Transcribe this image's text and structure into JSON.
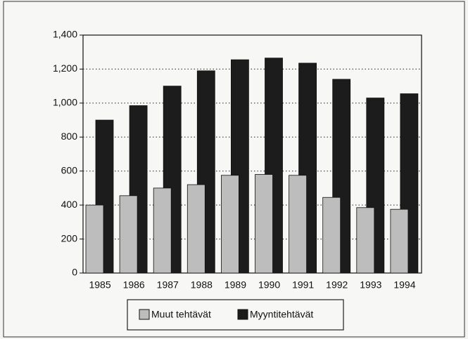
{
  "chart_data": {
    "type": "bar",
    "categories": [
      "1985",
      "1986",
      "1987",
      "1988",
      "1989",
      "1990",
      "1991",
      "1992",
      "1993",
      "1994"
    ],
    "series": [
      {
        "name": "Muut tehtävät",
        "color": "#bdbdbd",
        "values": [
          400,
          455,
          500,
          520,
          575,
          580,
          575,
          445,
          385,
          375
        ]
      },
      {
        "name": "Myyntitehtävät",
        "color": "#1c1c1c",
        "values": [
          900,
          985,
          1100,
          1190,
          1255,
          1265,
          1235,
          1140,
          1030,
          1055
        ]
      }
    ],
    "ylim": [
      0,
      1400
    ],
    "yticks": [
      0,
      200,
      400,
      600,
      800,
      {
        "value": 1000,
        "label": "1,000"
      },
      {
        "value": 1200,
        "label": "1,200"
      },
      {
        "value": 1400,
        "label": "1,400"
      }
    ],
    "grid": true,
    "legend": "bottom"
  }
}
